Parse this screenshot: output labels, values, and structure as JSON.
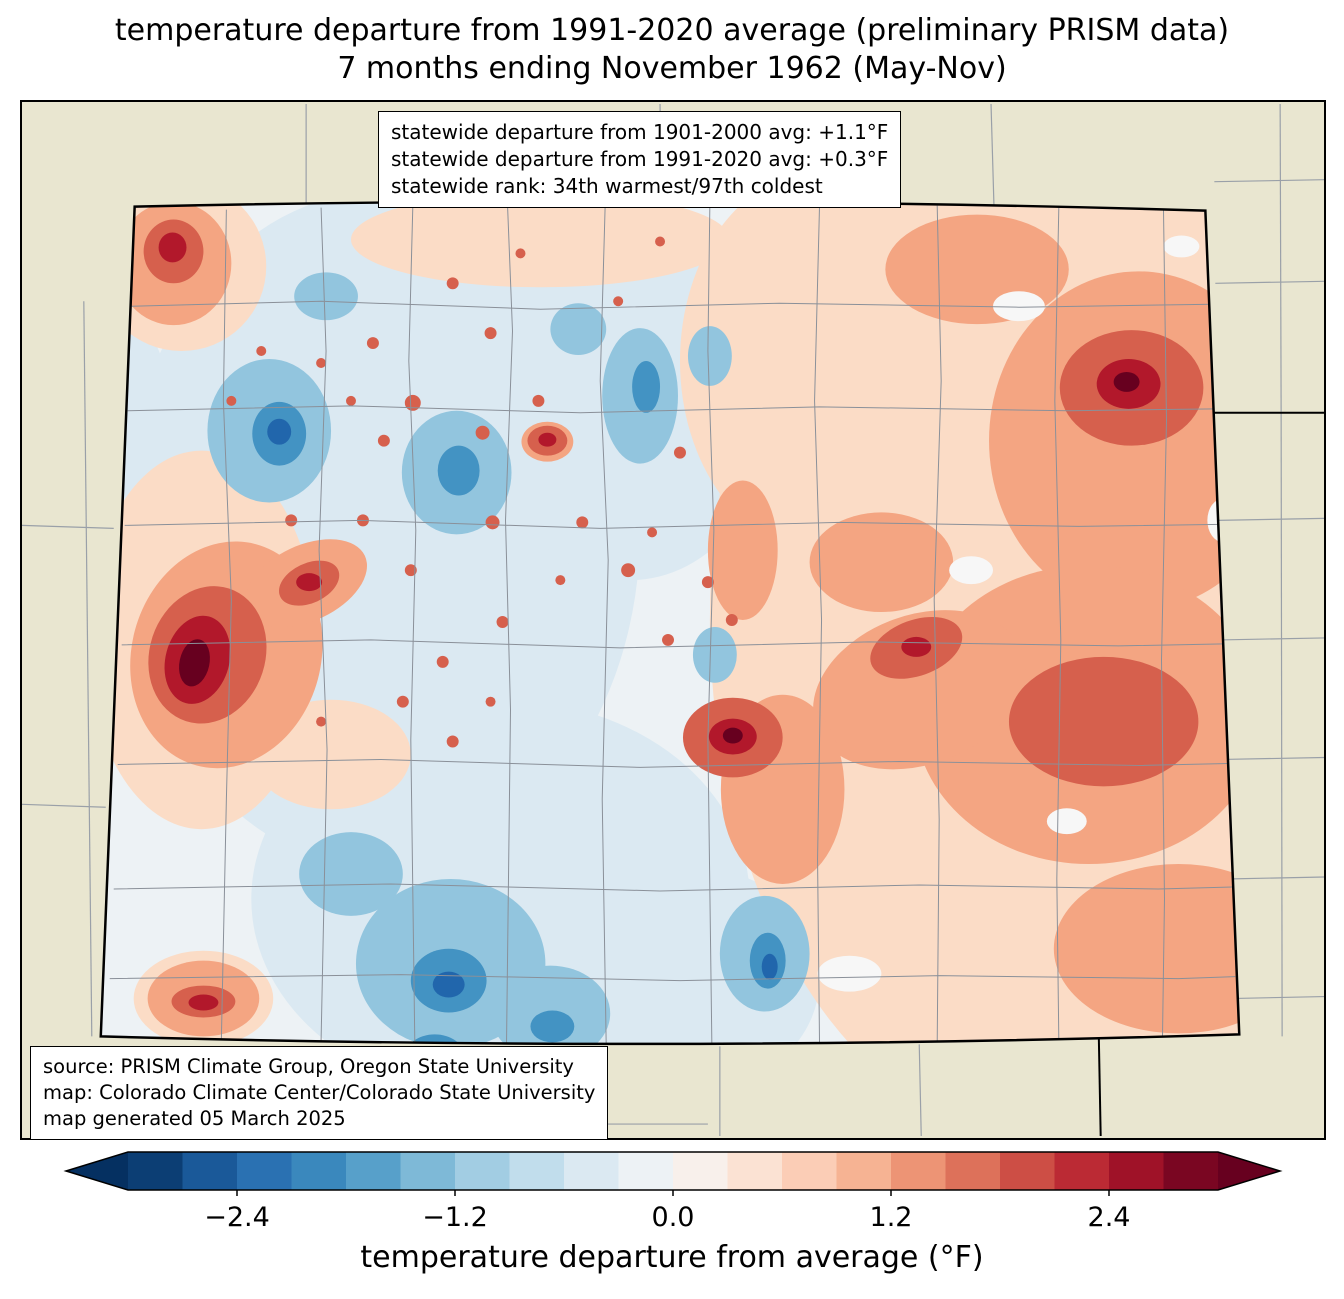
{
  "title": {
    "line1": "temperature departure from 1991-2020 average (preliminary PRISM data)",
    "line2": "7 months ending November 1962 (May-Nov)"
  },
  "stats_box": {
    "line1": "statewide departure from 1901-2000 avg: +1.1°F",
    "line2": "statewide departure from 1991-2020 avg: +0.3°F",
    "line3": "statewide rank: 34th warmest/97th coldest"
  },
  "source_box": {
    "line1": "source: PRISM Climate Group, Oregon State University",
    "line2": "map: Colorado Climate Center/Colorado State University",
    "line3": "map generated 05 March 2025"
  },
  "colorbar": {
    "label": "temperature departure from average (°F)",
    "range": [
      -3,
      3
    ],
    "ticks": [
      {
        "value": -2.4,
        "label": "−2.4"
      },
      {
        "value": -1.2,
        "label": "−1.2"
      },
      {
        "value": 0.0,
        "label": "0.0"
      },
      {
        "value": 1.2,
        "label": "1.2"
      },
      {
        "value": 2.4,
        "label": "2.4"
      }
    ],
    "segment_colors": [
      "#0c3e74",
      "#1a5999",
      "#2a71b2",
      "#3a88bd",
      "#57a0ca",
      "#7eb9d7",
      "#a2cde3",
      "#c1ddec",
      "#dbe9f2",
      "#edf2f5",
      "#f8f0eb",
      "#fbe2d3",
      "#fbcdb6",
      "#f6b393",
      "#ed9475",
      "#dd715a",
      "#cd4e45",
      "#bb2a34",
      "#9f1228",
      "#7a0622"
    ],
    "arrow_left_color": "#053061",
    "arrow_right_color": "#67001f"
  },
  "map": {
    "outside_background_color": "#e9e6d0",
    "state_border_color": "#000000",
    "county_line_color": "#8a9099",
    "neutral_fill_color": "#edf2f5"
  }
}
